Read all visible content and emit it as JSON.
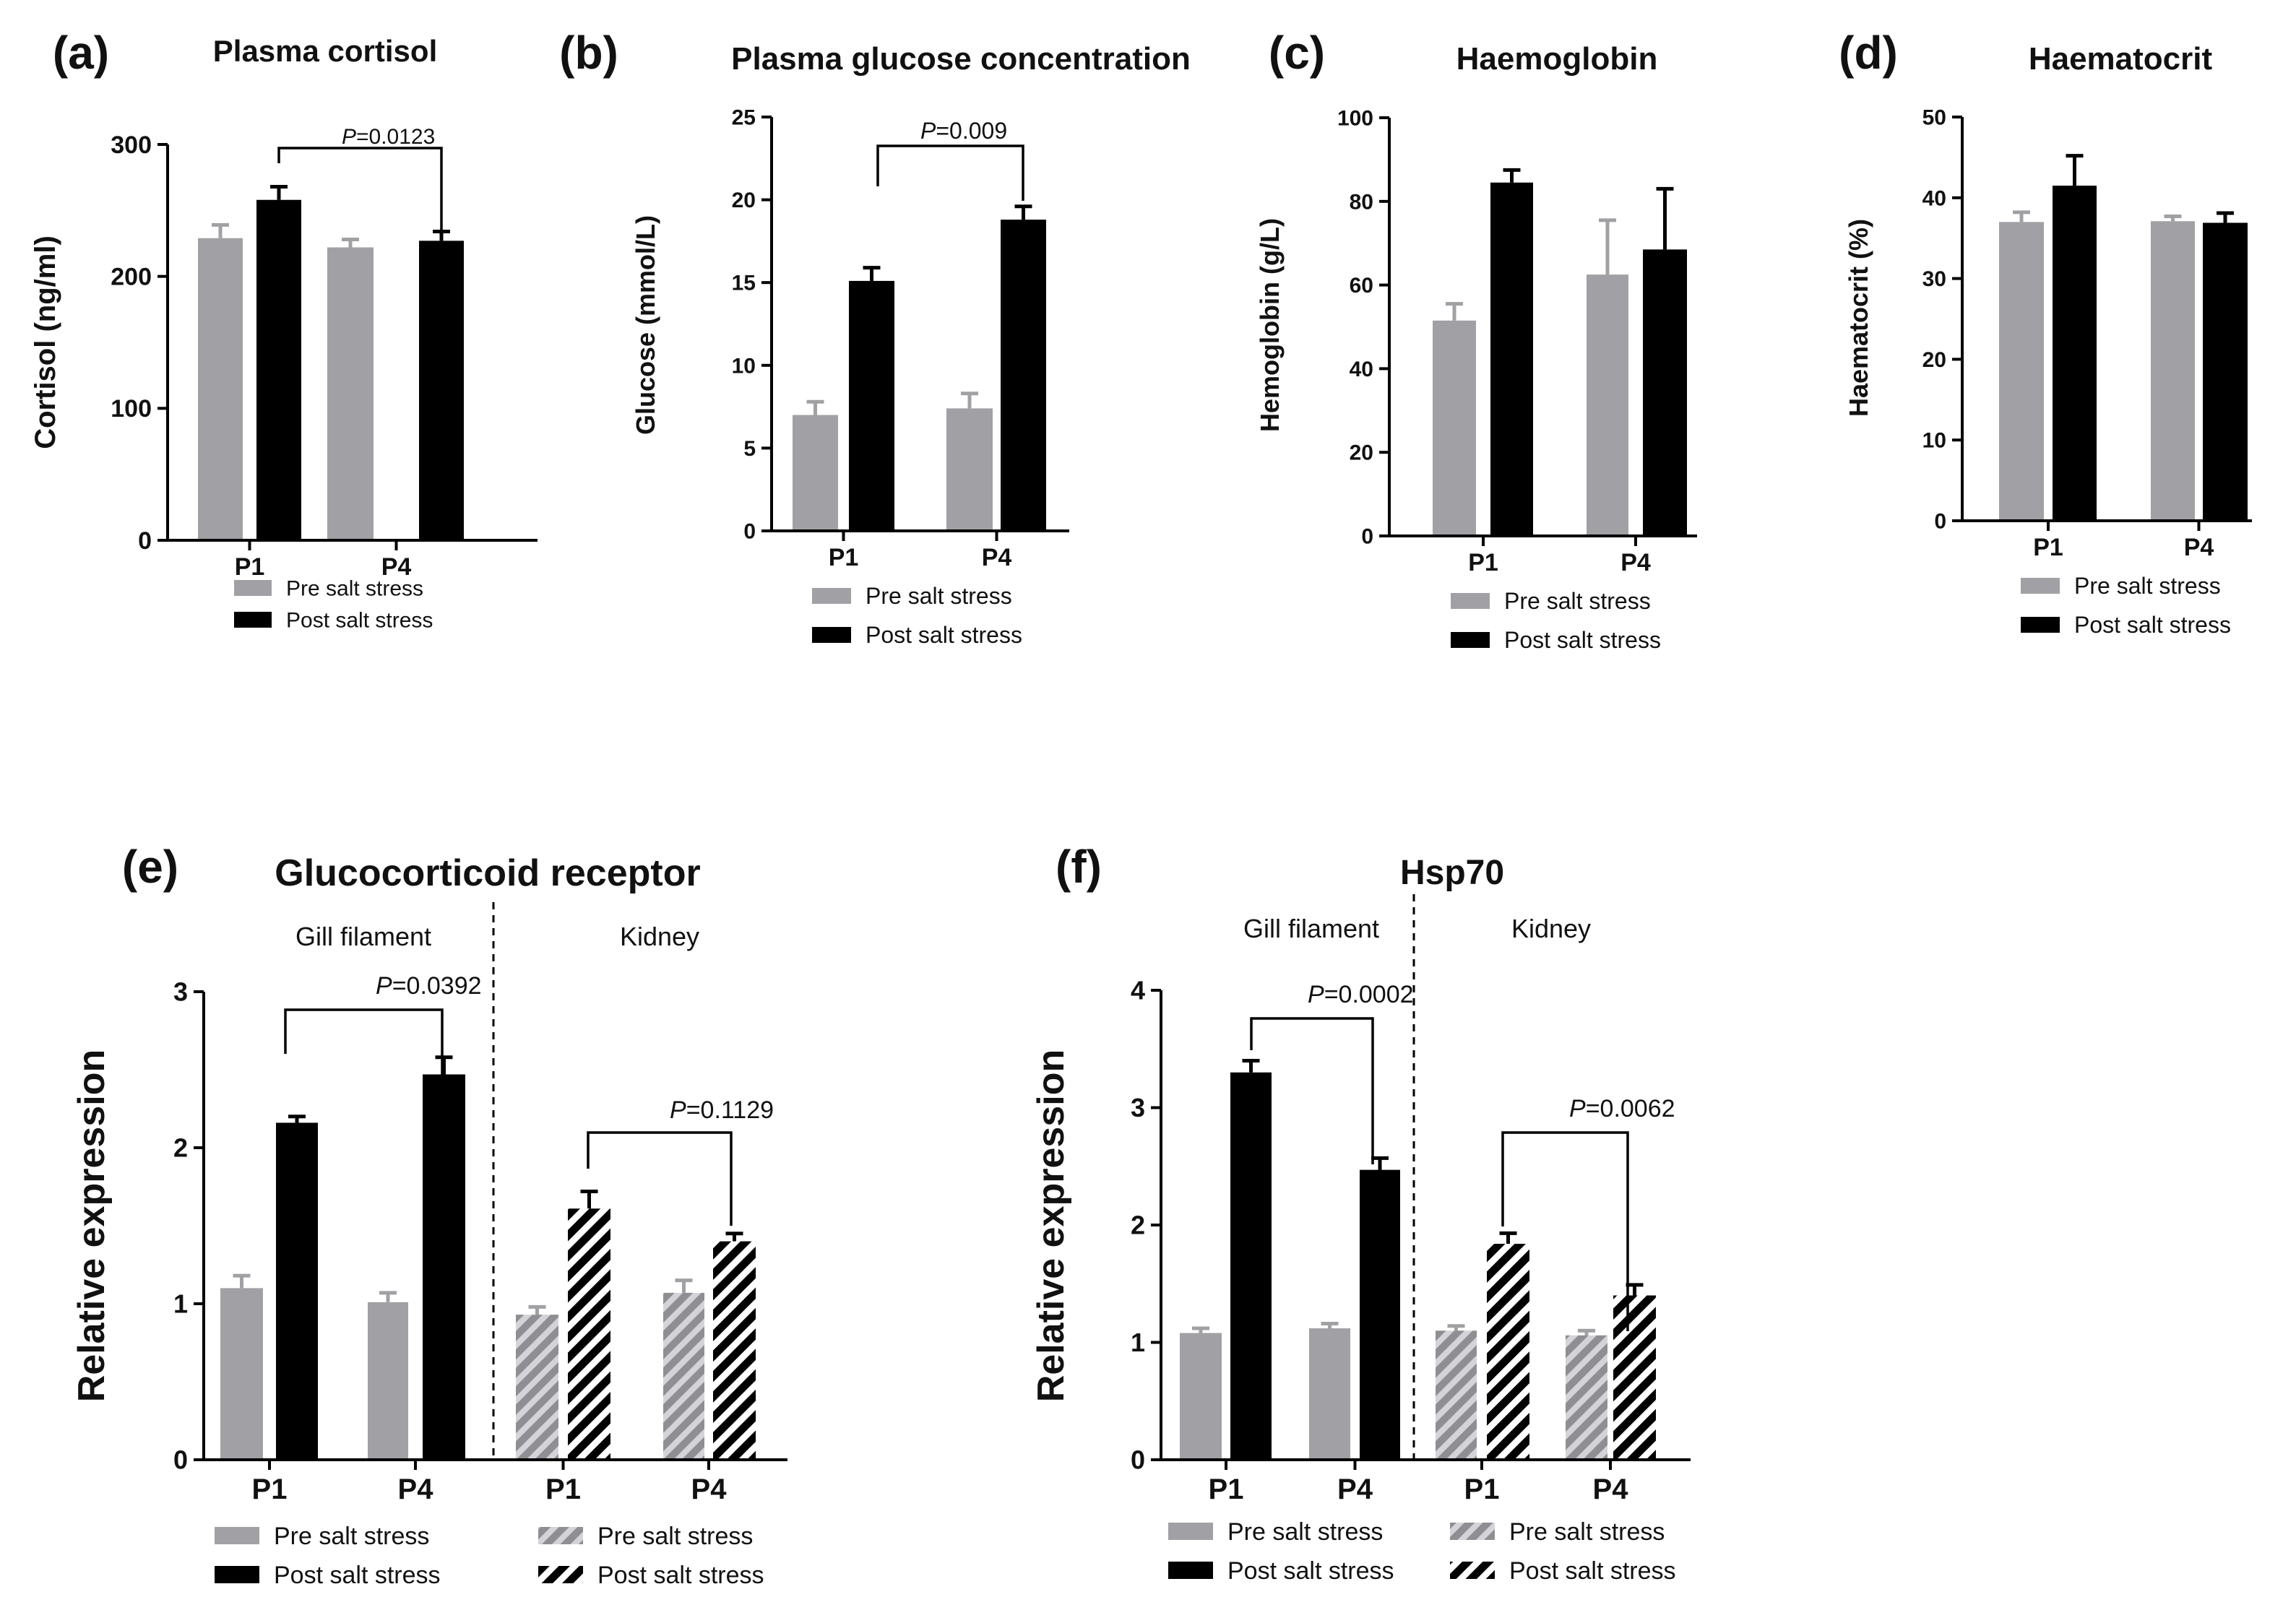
{
  "colors": {
    "pre": "#a1a0a4",
    "post": "#000000",
    "pre_hatch_fg": "#c9c8cc",
    "pre_hatch_bg": "#8f8e92"
  },
  "legend": {
    "pre": "Pre salt stress",
    "post": "Post salt stress"
  },
  "chart_data": [
    {
      "id": "a",
      "letter": "(a)",
      "type": "bar",
      "title": "Plasma cortisol",
      "ylabel": "Cortisol (ng/ml)",
      "ylim": [
        0,
        300
      ],
      "yticks": [
        "0",
        "100",
        "200",
        "300"
      ],
      "categories": [
        "P1",
        "P4"
      ],
      "series": [
        {
          "name": "Pre salt stress",
          "values": [
            229,
            222
          ],
          "errors": [
            10,
            6
          ]
        },
        {
          "name": "Post salt stress",
          "values": [
            258,
            227
          ],
          "errors": [
            10,
            7
          ]
        }
      ],
      "significance": [
        {
          "text": "=0.0123",
          "p": "P"
        }
      ]
    },
    {
      "id": "b",
      "letter": "(b)",
      "type": "bar",
      "title": "Plasma glucose concentration",
      "ylabel": "Glucose (mmol/L)",
      "ylim": [
        0,
        25
      ],
      "yticks": [
        "0",
        "5",
        "10",
        "15",
        "20",
        "25"
      ],
      "categories": [
        "P1",
        "P4"
      ],
      "series": [
        {
          "name": "Pre salt stress",
          "values": [
            7.0,
            7.4
          ],
          "errors": [
            0.8,
            0.9
          ]
        },
        {
          "name": "Post salt stress",
          "values": [
            15.1,
            18.8
          ],
          "errors": [
            0.8,
            0.8
          ]
        }
      ],
      "significance": [
        {
          "text": "=0.009",
          "p": "P"
        }
      ]
    },
    {
      "id": "c",
      "letter": "(c)",
      "type": "bar",
      "title": "Haemoglobin",
      "ylabel": "Hemoglobin (g/L)",
      "ylim": [
        0,
        100
      ],
      "yticks": [
        "0",
        "20",
        "40",
        "60",
        "80",
        "100"
      ],
      "categories": [
        "P1",
        "P4"
      ],
      "series": [
        {
          "name": "Pre salt stress",
          "values": [
            51.5,
            62.5
          ],
          "errors": [
            4,
            13
          ]
        },
        {
          "name": "Post salt stress",
          "values": [
            84.5,
            68.5
          ],
          "errors": [
            3,
            14.5
          ]
        }
      ],
      "significance": []
    },
    {
      "id": "d",
      "letter": "(d)",
      "type": "bar",
      "title": "Haematocrit",
      "ylabel": "Haematocrit (%)",
      "ylim": [
        0,
        50
      ],
      "yticks": [
        "0",
        "10",
        "20",
        "30",
        "40",
        "50"
      ],
      "categories": [
        "P1",
        "P4"
      ],
      "series": [
        {
          "name": "Pre salt stress",
          "values": [
            37.0,
            37.1
          ],
          "errors": [
            1.2,
            0.6
          ]
        },
        {
          "name": "Post salt stress",
          "values": [
            41.5,
            36.9
          ],
          "errors": [
            3.7,
            1.2
          ]
        }
      ],
      "significance": []
    },
    {
      "id": "e",
      "letter": "(e)",
      "type": "bar",
      "title": "Glucocorticoid receptor",
      "ylabel": "Relative expression",
      "ylim": [
        0,
        3
      ],
      "yticks": [
        "0",
        "1",
        "2",
        "3"
      ],
      "groups": [
        "Gill filament",
        "Kidney"
      ],
      "categories": [
        "P1",
        "P4",
        "P1",
        "P4"
      ],
      "series": [
        {
          "name": "Pre salt stress",
          "values": [
            1.1,
            1.01,
            0.93,
            1.07
          ],
          "errors": [
            0.08,
            0.06,
            0.05,
            0.08
          ]
        },
        {
          "name": "Post salt stress",
          "values": [
            2.16,
            2.47,
            1.61,
            1.4
          ],
          "errors": [
            0.04,
            0.11,
            0.11,
            0.05
          ]
        }
      ],
      "significance": [
        {
          "text": "=0.0392",
          "p": "P"
        },
        {
          "text": "=0.1129",
          "p": "P"
        }
      ]
    },
    {
      "id": "f",
      "letter": "(f)",
      "type": "bar",
      "title": "Hsp70",
      "ylabel": "Relative expression",
      "ylim": [
        0,
        4
      ],
      "yticks": [
        "0",
        "1",
        "2",
        "3",
        "4"
      ],
      "groups": [
        "Gill filament",
        "Kidney"
      ],
      "categories": [
        "P1",
        "P4",
        "P1",
        "P4"
      ],
      "series": [
        {
          "name": "Pre salt stress",
          "values": [
            1.08,
            1.12,
            1.1,
            1.06
          ],
          "errors": [
            0.04,
            0.04,
            0.04,
            0.04
          ]
        },
        {
          "name": "Post salt stress",
          "values": [
            3.3,
            2.47,
            1.84,
            1.4
          ],
          "errors": [
            0.1,
            0.1,
            0.09,
            0.09
          ]
        }
      ],
      "significance": [
        {
          "text": "=0.0002",
          "p": "P"
        },
        {
          "text": "=0.0062",
          "p": "P"
        }
      ]
    }
  ]
}
